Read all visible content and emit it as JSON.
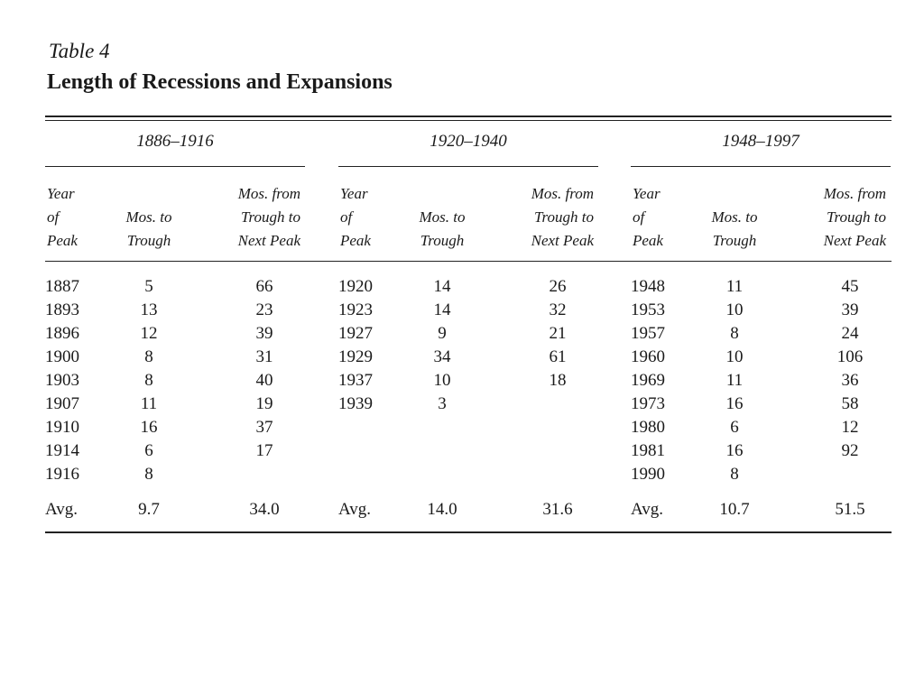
{
  "table_label": "Table 4",
  "table_title": "Length of Recessions and Expansions",
  "headers": {
    "year": [
      "Year",
      "of",
      "Peak"
    ],
    "trough": [
      "Mos. to",
      "Trough"
    ],
    "next": [
      "Mos. from",
      "Trough to",
      "Next Peak"
    ]
  },
  "avg_label": "Avg.",
  "groups": [
    {
      "period": "1886–1916",
      "years": [
        "1887",
        "1893",
        "1896",
        "1900",
        "1903",
        "1907",
        "1910",
        "1914",
        "1916"
      ],
      "trough": [
        "5",
        "13",
        "12",
        "8",
        "8",
        "11",
        "16",
        "6",
        "8"
      ],
      "next": [
        "66",
        "23",
        "39",
        "31",
        "40",
        "19",
        "37",
        "17",
        ""
      ],
      "avg_trough": "9.7",
      "avg_next": "34.0"
    },
    {
      "period": "1920–1940",
      "years": [
        "1920",
        "1923",
        "1927",
        "1929",
        "1937",
        "1939"
      ],
      "trough": [
        "14",
        "14",
        "9",
        "34",
        "10",
        "3"
      ],
      "next": [
        "26",
        "32",
        "21",
        "61",
        "18",
        ""
      ],
      "avg_trough": "14.0",
      "avg_next": "31.6"
    },
    {
      "period": "1948–1997",
      "years": [
        "1948",
        "1953",
        "1957",
        "1960",
        "1969",
        "1973",
        "1980",
        "1981",
        "1990"
      ],
      "trough": [
        "11",
        "10",
        "8",
        "10",
        "11",
        "16",
        "6",
        "16",
        "8"
      ],
      "next": [
        "45",
        "39",
        "24",
        "106",
        "36",
        "58",
        "12",
        "92",
        ""
      ],
      "avg_trough": "10.7",
      "avg_next": "51.5"
    }
  ]
}
